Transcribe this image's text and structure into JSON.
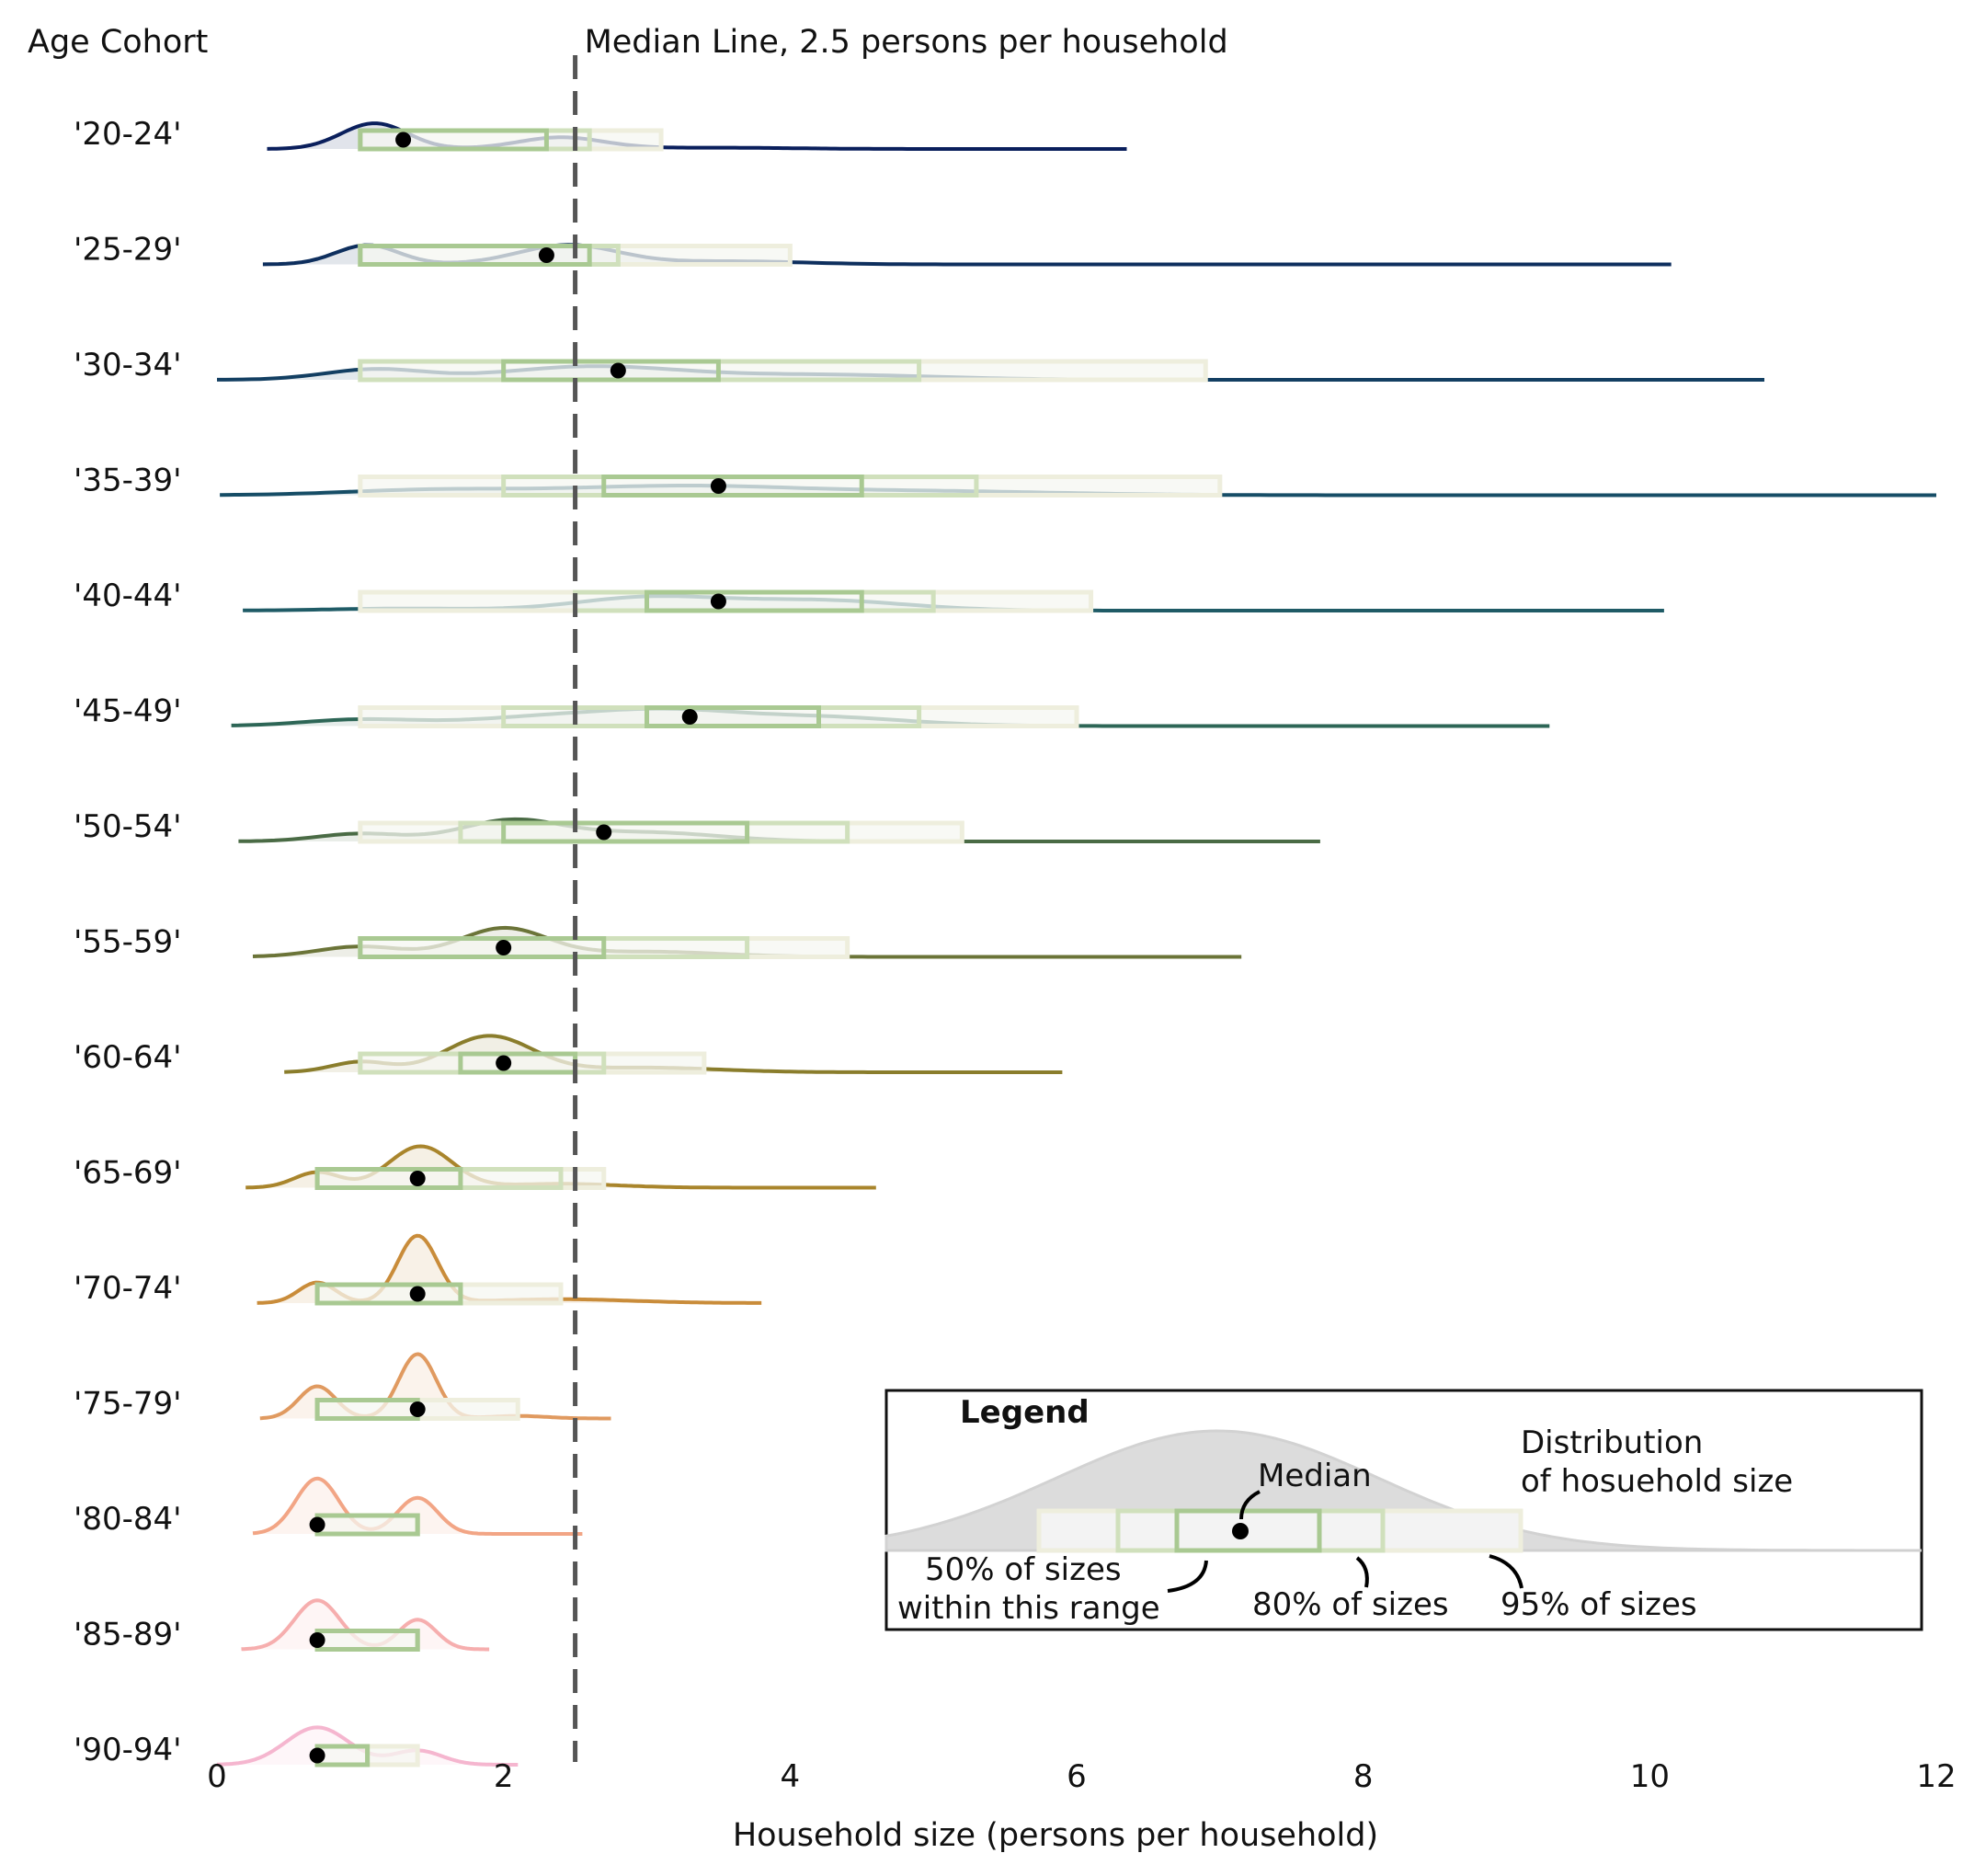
{
  "chart_data": {
    "type": "ridgeline",
    "xlabel": "Household size (persons per household)",
    "ylabel": "Age Cohort",
    "xlim": [
      0,
      12
    ],
    "xticks": [
      0,
      2,
      4,
      6,
      8,
      10,
      12
    ],
    "median_line": {
      "x": 2.5,
      "label": "Median Line, 2.5 persons per household"
    },
    "intervals": [
      "95%",
      "80%",
      "50%"
    ],
    "cohorts": [
      {
        "label": "'20-24'",
        "color": "#0a1f5c",
        "median": 1.3,
        "int95": [
          1.0,
          3.1
        ],
        "int80": [
          1.0,
          2.6
        ],
        "int50": [
          1.0,
          2.3
        ],
        "x_range": [
          0.35,
          6.35
        ],
        "peaks": [
          {
            "mu": 1.1,
            "sd": 0.23,
            "a": 1.0
          },
          {
            "mu": 2.4,
            "sd": 0.3,
            "a": 0.45
          },
          {
            "mu": 3.5,
            "sd": 0.5,
            "a": 0.05
          }
        ]
      },
      {
        "label": "'25-29'",
        "color": "#0e2f5e",
        "median": 2.3,
        "int95": [
          1.0,
          4.0
        ],
        "int80": [
          1.0,
          2.8
        ],
        "int50": [
          1.0,
          2.6
        ],
        "x_range": [
          0.32,
          10.15
        ],
        "peaks": [
          {
            "mu": 1.05,
            "sd": 0.22,
            "a": 0.75
          },
          {
            "mu": 2.45,
            "sd": 0.35,
            "a": 0.75
          },
          {
            "mu": 3.6,
            "sd": 0.5,
            "a": 0.12
          }
        ]
      },
      {
        "label": "'30-34'",
        "color": "#133f62",
        "median": 2.8,
        "int95": [
          1.0,
          6.9
        ],
        "int80": [
          1.0,
          4.9
        ],
        "int50": [
          2.0,
          3.5
        ],
        "x_range": [
          0.0,
          10.8
        ],
        "peaks": [
          {
            "mu": 1.1,
            "sd": 0.35,
            "a": 0.4
          },
          {
            "mu": 2.6,
            "sd": 0.6,
            "a": 0.5
          },
          {
            "mu": 4.2,
            "sd": 0.8,
            "a": 0.2
          }
        ]
      },
      {
        "label": "'35-39'",
        "color": "#164d66",
        "median": 3.5,
        "int95": [
          1.0,
          7.0
        ],
        "int80": [
          2.0,
          5.3
        ],
        "int50": [
          2.7,
          4.5
        ],
        "x_range": [
          0.02,
          12.0
        ],
        "peaks": [
          {
            "mu": 1.5,
            "sd": 0.6,
            "a": 0.2
          },
          {
            "mu": 3.2,
            "sd": 0.8,
            "a": 0.35
          },
          {
            "mu": 5.0,
            "sd": 0.9,
            "a": 0.15
          }
        ]
      },
      {
        "label": "'40-44'",
        "color": "#1f5b66",
        "median": 3.5,
        "int95": [
          1.0,
          6.1
        ],
        "int80": [
          2.5,
          5.0
        ],
        "int50": [
          3.0,
          4.5
        ],
        "x_range": [
          0.18,
          10.1
        ],
        "peaks": [
          {
            "mu": 1.3,
            "sd": 0.5,
            "a": 0.08
          },
          {
            "mu": 3.0,
            "sd": 0.5,
            "a": 0.5
          },
          {
            "mu": 4.2,
            "sd": 0.6,
            "a": 0.4
          }
        ]
      },
      {
        "label": "'45-49'",
        "color": "#2d6656",
        "median": 3.3,
        "int95": [
          1.0,
          6.0
        ],
        "int80": [
          2.0,
          4.9
        ],
        "int50": [
          3.0,
          4.2
        ],
        "x_range": [
          0.1,
          9.3
        ],
        "peaks": [
          {
            "mu": 1.0,
            "sd": 0.4,
            "a": 0.25
          },
          {
            "mu": 2.2,
            "sd": 0.5,
            "a": 0.3
          },
          {
            "mu": 3.1,
            "sd": 0.5,
            "a": 0.55
          },
          {
            "mu": 4.2,
            "sd": 0.6,
            "a": 0.35
          }
        ]
      },
      {
        "label": "'50-54'",
        "color": "#4a6b45",
        "median": 2.7,
        "int95": [
          1.0,
          5.2
        ],
        "int80": [
          1.7,
          4.4
        ],
        "int50": [
          2.0,
          3.7
        ],
        "x_range": [
          0.15,
          7.7
        ],
        "peaks": [
          {
            "mu": 1.0,
            "sd": 0.3,
            "a": 0.3
          },
          {
            "mu": 2.05,
            "sd": 0.35,
            "a": 0.8
          },
          {
            "mu": 3.0,
            "sd": 0.5,
            "a": 0.35
          }
        ]
      },
      {
        "label": "'55-59'",
        "color": "#6b7438",
        "median": 2.0,
        "int95": [
          1.0,
          4.4
        ],
        "int80": [
          1.0,
          3.7
        ],
        "int50": [
          1.0,
          2.7
        ],
        "x_range": [
          0.25,
          7.15
        ],
        "peaks": [
          {
            "mu": 1.0,
            "sd": 0.3,
            "a": 0.4
          },
          {
            "mu": 2.0,
            "sd": 0.3,
            "a": 1.1
          },
          {
            "mu": 3.0,
            "sd": 0.5,
            "a": 0.2
          }
        ]
      },
      {
        "label": "'60-64'",
        "color": "#8a7d2c",
        "median": 2.0,
        "int95": [
          1.0,
          3.4
        ],
        "int80": [
          1.0,
          2.7
        ],
        "int50": [
          1.7,
          2.5
        ],
        "x_range": [
          0.47,
          5.9
        ],
        "peaks": [
          {
            "mu": 1.0,
            "sd": 0.2,
            "a": 0.4
          },
          {
            "mu": 1.9,
            "sd": 0.3,
            "a": 1.4
          },
          {
            "mu": 3.0,
            "sd": 0.5,
            "a": 0.18
          }
        ]
      },
      {
        "label": "'65-69'",
        "color": "#a9852c",
        "median": 1.4,
        "int95": [
          0.7,
          2.7
        ],
        "int80": [
          0.7,
          2.4
        ],
        "int50": [
          0.7,
          1.7
        ],
        "x_range": [
          0.2,
          4.6
        ],
        "peaks": [
          {
            "mu": 0.7,
            "sd": 0.16,
            "a": 0.6
          },
          {
            "mu": 1.42,
            "sd": 0.22,
            "a": 1.6
          },
          {
            "mu": 2.4,
            "sd": 0.4,
            "a": 0.15
          }
        ]
      },
      {
        "label": "'70-74'",
        "color": "#c98c3a",
        "median": 1.4,
        "int95": [
          0.7,
          2.4
        ],
        "int80": [
          0.7,
          1.7
        ],
        "int50": [
          0.7,
          1.7
        ],
        "x_range": [
          0.28,
          3.8
        ],
        "peaks": [
          {
            "mu": 0.7,
            "sd": 0.13,
            "a": 0.8
          },
          {
            "mu": 1.4,
            "sd": 0.14,
            "a": 2.6
          },
          {
            "mu": 2.4,
            "sd": 0.5,
            "a": 0.15
          }
        ]
      },
      {
        "label": "'75-79'",
        "color": "#e09a60",
        "median": 1.4,
        "int95": [
          0.7,
          2.1
        ],
        "int80": [
          0.7,
          1.4
        ],
        "int50": [
          0.7,
          1.4
        ],
        "x_range": [
          0.3,
          2.75
        ],
        "peaks": [
          {
            "mu": 0.7,
            "sd": 0.13,
            "a": 1.25
          },
          {
            "mu": 1.4,
            "sd": 0.13,
            "a": 2.5
          },
          {
            "mu": 2.1,
            "sd": 0.2,
            "a": 0.1
          }
        ]
      },
      {
        "label": "'80-84'",
        "color": "#f2a585",
        "median": 0.7,
        "int95": [
          0.7,
          1.4
        ],
        "int80": [
          0.7,
          1.4
        ],
        "int50": [
          0.7,
          1.4
        ],
        "x_range": [
          0.25,
          2.55
        ],
        "peaks": [
          {
            "mu": 0.7,
            "sd": 0.15,
            "a": 2.15
          },
          {
            "mu": 1.4,
            "sd": 0.14,
            "a": 1.4
          }
        ]
      },
      {
        "label": "'85-89'",
        "color": "#f6aeae",
        "median": 0.7,
        "int95": [
          0.7,
          1.4
        ],
        "int80": [
          0.7,
          1.4
        ],
        "int50": [
          0.7,
          1.4
        ],
        "x_range": [
          0.17,
          1.9
        ],
        "peaks": [
          {
            "mu": 0.7,
            "sd": 0.16,
            "a": 1.9
          },
          {
            "mu": 1.4,
            "sd": 0.13,
            "a": 1.15
          }
        ]
      },
      {
        "label": "'90-94'",
        "color": "#f5b6cf",
        "median": 0.7,
        "int95": [
          0.7,
          1.4
        ],
        "int80": [
          0.7,
          1.05
        ],
        "int50": [
          0.7,
          1.05
        ],
        "x_range": [
          0.0,
          2.1
        ],
        "peaks": [
          {
            "mu": 0.7,
            "sd": 0.22,
            "a": 1.45
          },
          {
            "mu": 1.4,
            "sd": 0.17,
            "a": 0.55
          }
        ]
      }
    ],
    "box_colors": {
      "int95": "#eeeedd",
      "int80": "#d0e0bc",
      "int50": "#a9c992",
      "fill": "#f6f7f2",
      "median_dot": "#000000"
    },
    "legend": {
      "title": "Legend",
      "distribution_label_1": "Distribution",
      "distribution_label_2": "of hosuehold size",
      "median_label": "Median",
      "label_50_1": "50% of sizes",
      "label_50_2": "within this range",
      "label_80": "80% of sizes",
      "label_95": "95% of sizes"
    }
  }
}
